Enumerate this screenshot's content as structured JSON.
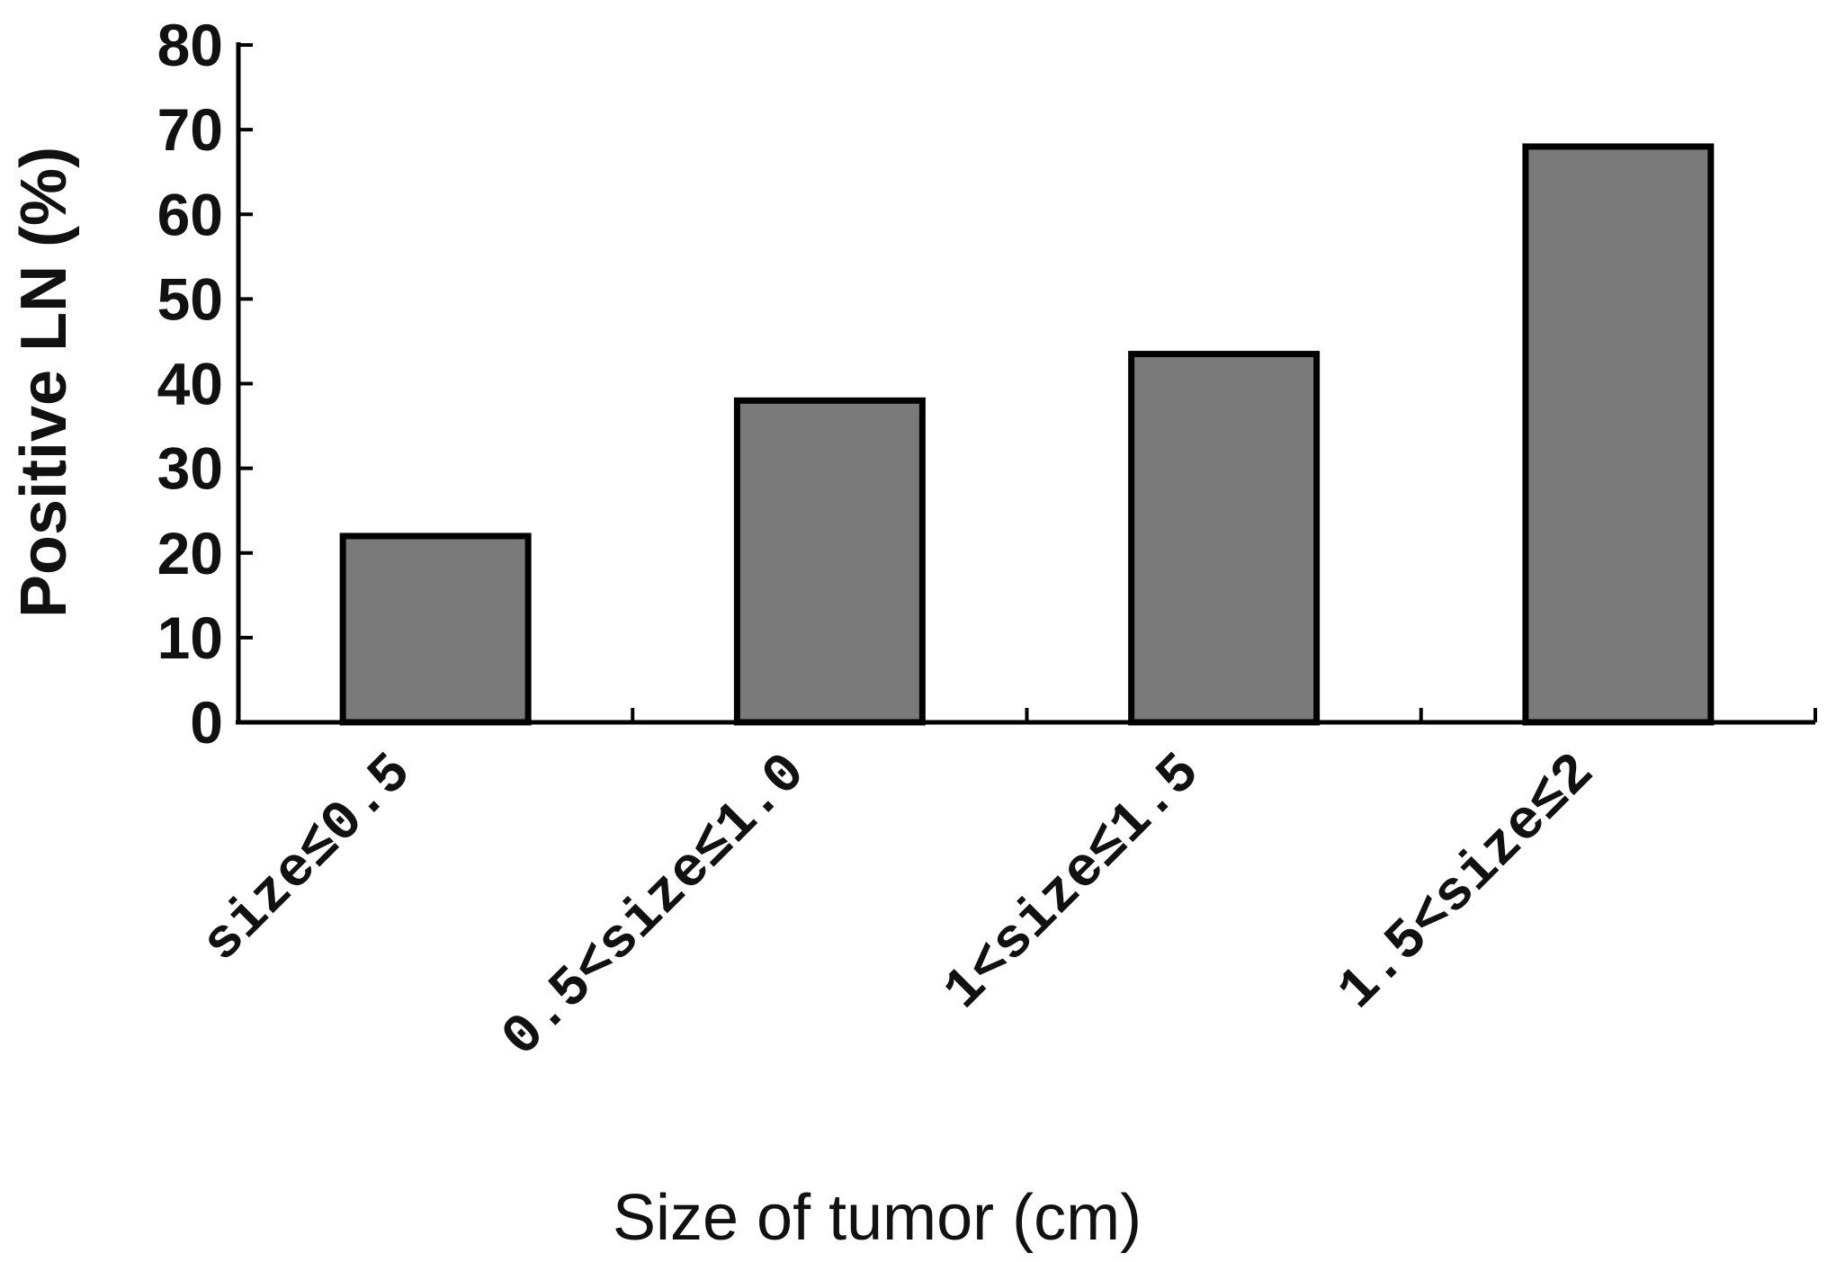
{
  "chart_data": {
    "type": "bar",
    "categories": [
      "size≤0.5",
      "0.5<size≤1.0",
      "1<size≤1.5",
      "1.5<size≤2"
    ],
    "values": [
      22,
      38,
      43.5,
      68
    ],
    "xlabel": "Size of tumor (cm)",
    "ylabel": "Positive LN (%)",
    "ylim": [
      0,
      80
    ],
    "yticks": [
      0,
      10,
      20,
      30,
      40,
      50,
      60,
      70,
      80
    ],
    "bar_color": "#7a7a7a",
    "grid": false
  }
}
